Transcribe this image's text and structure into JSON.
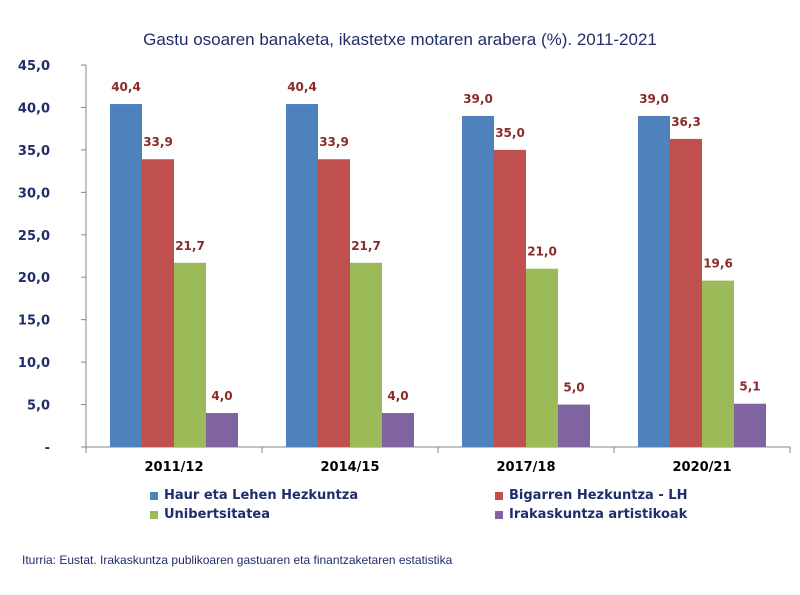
{
  "chart_data": {
    "type": "bar",
    "title": "Gastu osoaren banaketa, ikastetxe motaren arabera (%). 2011-2021",
    "categories": [
      "2011/12",
      "2014/15",
      "2017/18",
      "2020/21"
    ],
    "series": [
      {
        "name": "Haur eta Lehen Hezkuntza",
        "color": "#4f81bd",
        "values": [
          40.4,
          40.4,
          39.0,
          39.0
        ],
        "labels": [
          "40,4",
          "40,4",
          "39,0",
          "39,0"
        ]
      },
      {
        "name": "Bigarren Hezkuntza - LH",
        "color": "#c0504d",
        "values": [
          33.9,
          33.9,
          35.0,
          36.3
        ],
        "labels": [
          "33,9",
          "33,9",
          "35,0",
          "36,3"
        ]
      },
      {
        "name": "Unibertsitatea",
        "color": "#9bbb59",
        "values": [
          21.7,
          21.7,
          21.0,
          19.6
        ],
        "labels": [
          "21,7",
          "21,7",
          "21,0",
          "19,6"
        ]
      },
      {
        "name": "Irakaskuntza artistikoak",
        "color": "#8064a2",
        "values": [
          4.0,
          4.0,
          5.0,
          5.1
        ],
        "labels": [
          "4,0",
          "4,0",
          "5,0",
          "5,1"
        ]
      }
    ],
    "ylim": [
      0,
      45
    ],
    "yticks": [
      0,
      5,
      10,
      15,
      20,
      25,
      30,
      35,
      40,
      45
    ],
    "ytick_labels": [
      "-",
      "5,0",
      "10,0",
      "15,0",
      "20,0",
      "25,0",
      "30,0",
      "35,0",
      "40,0",
      "45,0"
    ],
    "xlabel": "",
    "ylabel": "",
    "legend_position": "bottom",
    "grid": false
  },
  "source": "Iturria: Eustat. Irakaskuntza publikoaren gastuaren eta finantzaketaren estatistika"
}
